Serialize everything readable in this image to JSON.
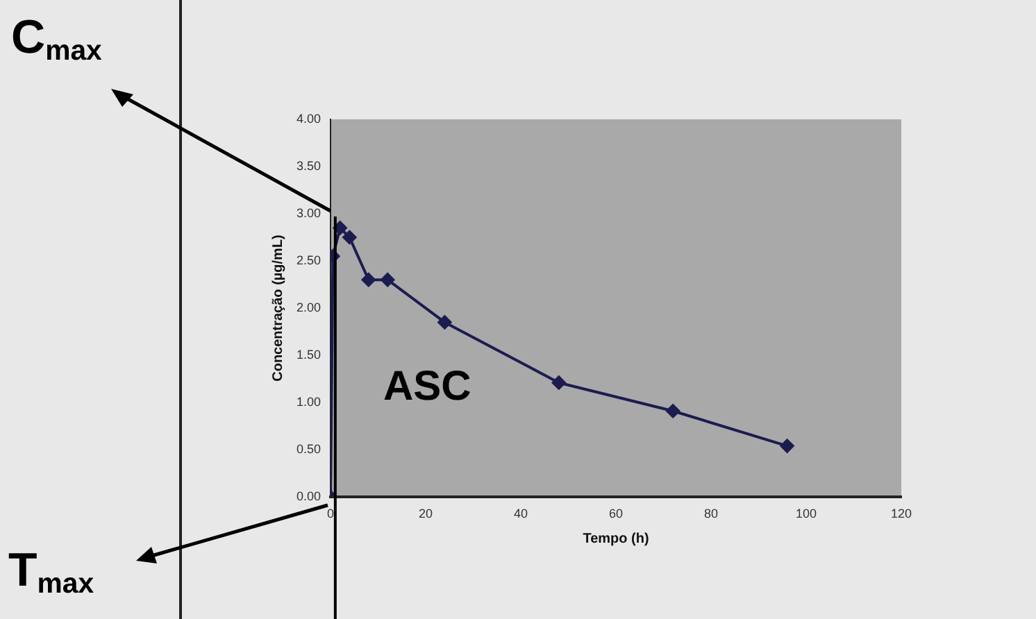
{
  "chart_data": {
    "type": "line",
    "xlabel": "Tempo (h)",
    "ylabel": "Concentração (µg/mL)",
    "x": [
      0,
      0.5,
      2,
      4,
      8,
      12,
      24,
      48,
      72,
      96
    ],
    "series": [
      {
        "color": "#1c1c50",
        "values": [
          0,
          2.55,
          2.85,
          2.75,
          2.3,
          2.3,
          1.85,
          1.21,
          0.91,
          0.54
        ]
      }
    ],
    "xlim": [
      0,
      120
    ],
    "xticks": [
      0,
      20,
      40,
      60,
      80,
      100,
      120
    ],
    "ylim": [
      0,
      4
    ],
    "yticks": [
      {
        "value": 0,
        "label": "0.00"
      },
      {
        "value": 0.5,
        "label": "0.50"
      },
      {
        "value": 1,
        "label": "1.00"
      },
      {
        "value": 1.5,
        "label": "1.50"
      },
      {
        "value": 2,
        "label": "2.00"
      },
      {
        "value": 2.5,
        "label": "2.50"
      },
      {
        "value": 3,
        "label": "3.00"
      },
      {
        "value": 3.5,
        "label": "3.50"
      },
      {
        "value": 4,
        "label": "4.00"
      }
    ],
    "ref_lines": [
      {
        "axis": "x",
        "value": 1,
        "color": "#000000"
      }
    ],
    "annotations": [
      "C$_{max}$",
      "T$_{max}$",
      "ASC"
    ],
    "marker": "diamond",
    "grid": false,
    "legend": false
  }
}
